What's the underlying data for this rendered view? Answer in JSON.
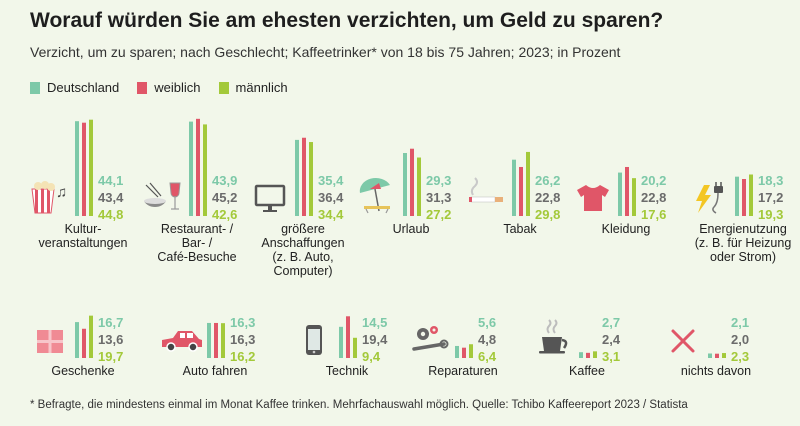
{
  "title": "Worauf würden Sie am ehesten verzichten, um Geld zu sparen?",
  "subtitle": "Verzicht, um zu sparen; nach Geschlecht; Kaffeetrinker* von 18 bis 75 Jahren; 2023; in Prozent",
  "footnote": "* Befragte, die mindestens einmal im Monat Kaffee trinken. Mehrfachauswahl möglich. Quelle: Tchibo Kaffeereport 2023 / Statista",
  "colors": {
    "Deutschland": "#7dc9a8",
    "weiblich": "#e05668",
    "männlich": "#a3c93a",
    "valueDark": "#6b6b6b",
    "background": "#f2f7ea"
  },
  "chart_data": {
    "type": "bar",
    "title": "Worauf würden Sie am ehesten verzichten, um Geld zu sparen?",
    "unit": "Prozent",
    "series_names": [
      "Deutschland",
      "weiblich",
      "männlich"
    ],
    "categories": [
      {
        "label": [
          "Kultur-",
          "veranstaltungen"
        ],
        "icon": "popcorn-music-icon",
        "values": [
          44.1,
          43.4,
          44.8
        ],
        "labels": [
          "44,1",
          "43,4",
          "44,8"
        ]
      },
      {
        "label": [
          "Restaurant- /",
          "Bar- /",
          "Café-Besuche"
        ],
        "icon": "bowl-wine-icon",
        "values": [
          43.9,
          45.2,
          42.6
        ],
        "labels": [
          "43,9",
          "45,2",
          "42,6"
        ]
      },
      {
        "label": [
          "größere",
          "Anschaffungen",
          "(z. B. Auto,",
          "Computer)"
        ],
        "icon": "monitor-icon",
        "values": [
          35.4,
          36.4,
          34.4
        ],
        "labels": [
          "35,4",
          "36,4",
          "34,4"
        ]
      },
      {
        "label": [
          "Urlaub"
        ],
        "icon": "beach-umbrella-icon",
        "values": [
          29.3,
          31.3,
          27.2
        ],
        "labels": [
          "29,3",
          "31,3",
          "27,2"
        ]
      },
      {
        "label": [
          "Tabak"
        ],
        "icon": "cigarette-icon",
        "values": [
          26.2,
          22.8,
          29.8
        ],
        "labels": [
          "26,2",
          "22,8",
          "29,8"
        ]
      },
      {
        "label": [
          "Kleidung"
        ],
        "icon": "tshirt-icon",
        "values": [
          20.2,
          22.8,
          17.6
        ],
        "labels": [
          "20,2",
          "22,8",
          "17,6"
        ]
      },
      {
        "label": [
          "Energienutzung",
          "(z. B. für Heizung",
          "oder Strom)"
        ],
        "icon": "energy-plug-icon",
        "values": [
          18.3,
          17.2,
          19.3
        ],
        "labels": [
          "18,3",
          "17,2",
          "19,3"
        ]
      },
      {
        "label": [
          "Geschenke"
        ],
        "icon": "gift-icon",
        "values": [
          16.7,
          13.6,
          19.7
        ],
        "labels": [
          "16,7",
          "13,6",
          "19,7"
        ]
      },
      {
        "label": [
          "Auto fahren"
        ],
        "icon": "car-icon",
        "values": [
          16.3,
          16.3,
          16.2
        ],
        "labels": [
          "16,3",
          "16,3",
          "16,2"
        ]
      },
      {
        "label": [
          "Technik"
        ],
        "icon": "smartphone-icon",
        "values": [
          14.5,
          19.4,
          9.4
        ],
        "labels": [
          "14,5",
          "19,4",
          "9,4"
        ]
      },
      {
        "label": [
          "Reparaturen"
        ],
        "icon": "gears-wrench-icon",
        "values": [
          5.6,
          4.8,
          6.4
        ],
        "labels": [
          "5,6",
          "4,8",
          "6,4"
        ]
      },
      {
        "label": [
          "Kaffee"
        ],
        "icon": "coffee-cup-icon",
        "values": [
          2.7,
          2.4,
          3.1
        ],
        "labels": [
          "2,7",
          "2,4",
          "3,1"
        ]
      },
      {
        "label": [
          "nichts davon"
        ],
        "icon": "cross-icon",
        "values": [
          2.1,
          2.0,
          2.3
        ],
        "labels": [
          "2,1",
          "2,0",
          "2,3"
        ]
      }
    ]
  }
}
